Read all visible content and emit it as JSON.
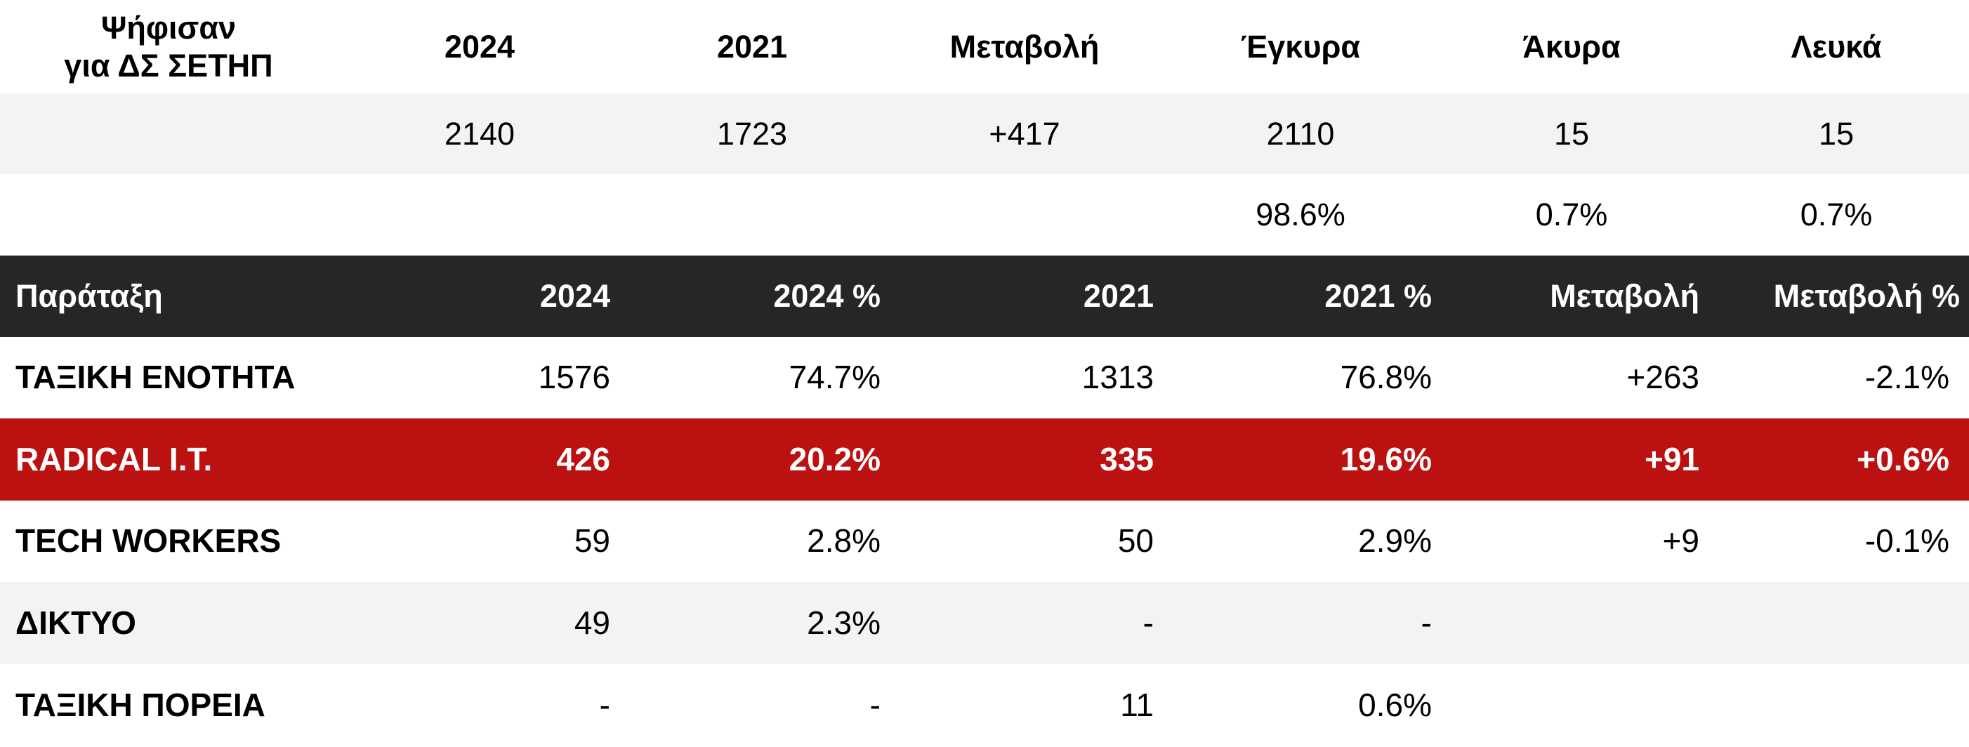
{
  "summary": {
    "header": {
      "title_line1": "Ψήφισαν",
      "title_line2": "για ΔΣ ΣΕΤΗΠ",
      "y2024": "2024",
      "y2021": "2021",
      "change": "Μεταβολή",
      "valid": "Έγκυρα",
      "invalid": "Άκυρα",
      "blank": "Λευκά"
    },
    "values": {
      "y2024": "2140",
      "y2021": "1723",
      "change": "+417",
      "valid": "2110",
      "invalid": "15",
      "blank": "15"
    },
    "percentages": {
      "valid": "98.6%",
      "invalid": "0.7%",
      "blank": "0.7%"
    }
  },
  "results": {
    "columns": [
      "Παράταξη",
      "2024",
      "2024 %",
      "2021",
      "2021 %",
      "Μεταβολή",
      "Μεταβολή %"
    ],
    "rows": [
      [
        "ΤΑΞΙΚΗ ΕΝΟΤΗΤΑ",
        "1576",
        "74.7%",
        "1313",
        "76.8%",
        "+263",
        "-2.1%"
      ],
      [
        "RADICAL I.T.",
        "426",
        "20.2%",
        "335",
        "19.6%",
        "+91",
        "+0.6%"
      ],
      [
        "TECH WORKERS",
        "59",
        "2.8%",
        "50",
        "2.9%",
        "+9",
        "-0.1%"
      ],
      [
        "ΔΙΚΤΥΟ",
        "49",
        "2.3%",
        "-",
        "-",
        "",
        ""
      ],
      [
        "ΤΑΞΙΚΗ ΠΟΡΕΙΑ",
        "-",
        "-",
        "11",
        "0.6%",
        "",
        ""
      ]
    ],
    "highlight_row": 1,
    "colors": {
      "header_bg": "#262626",
      "highlight_bg": "#bb1111",
      "stripe_bg": "#f3f3f3"
    }
  }
}
